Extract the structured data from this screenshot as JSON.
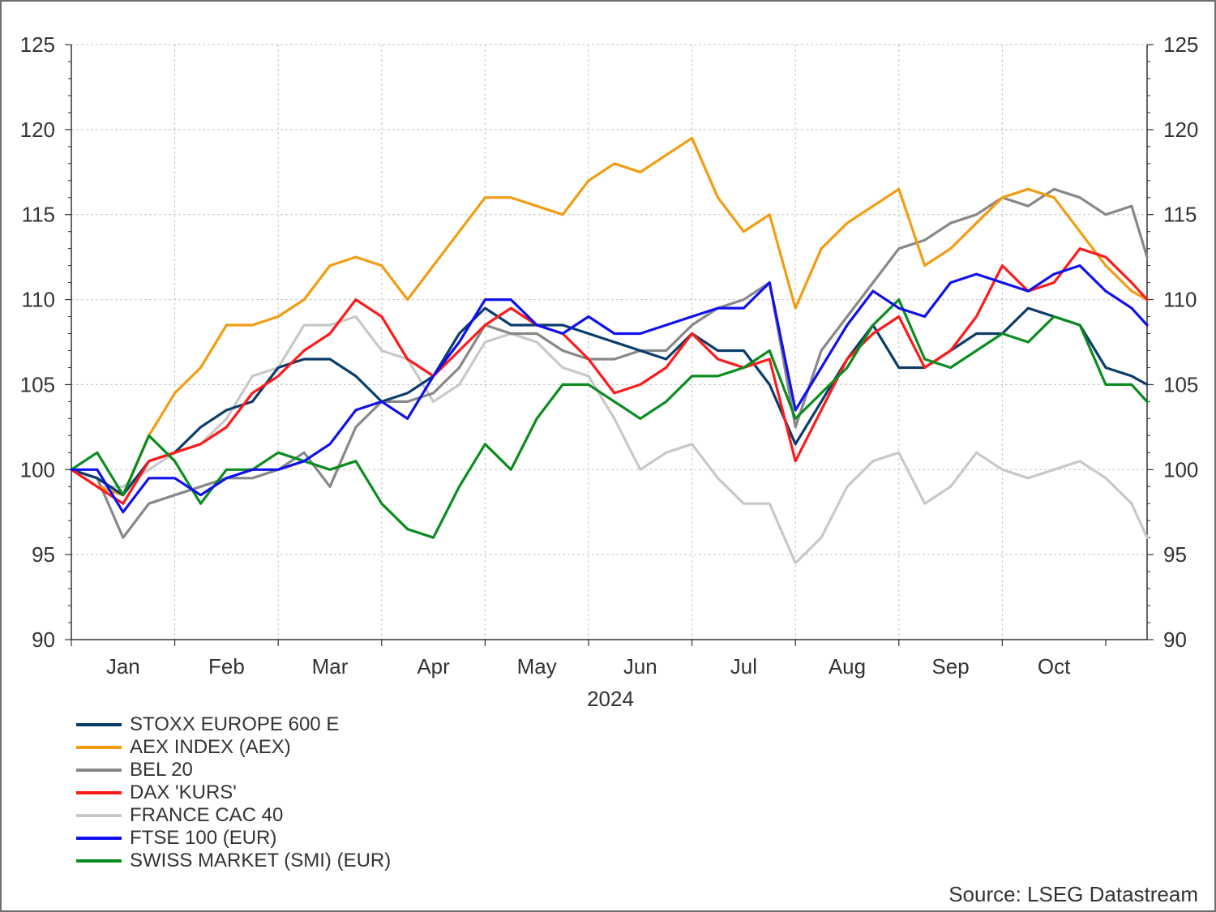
{
  "chart_data": {
    "type": "line",
    "xlabel": "2024",
    "ylabel": "",
    "ylim": [
      90,
      125
    ],
    "yticks": [
      90,
      95,
      100,
      105,
      110,
      115,
      120,
      125
    ],
    "y_axis_sides": "left and right",
    "grid": true,
    "legend_position": "bottom-left",
    "x_range_months": [
      0,
      10.4
    ],
    "x_unit": "months from 1 Jan 2024",
    "month_labels": [
      "Jan",
      "Feb",
      "Mar",
      "Apr",
      "May",
      "Jun",
      "Jul",
      "Aug",
      "Sep",
      "Oct"
    ],
    "source": "Source: LSEG Datastream",
    "series": [
      {
        "name": "STOXX EUROPE 600 E",
        "color": "#0b3d6b",
        "x": [
          0,
          0.25,
          0.5,
          0.75,
          1.0,
          1.25,
          1.5,
          1.75,
          2.0,
          2.25,
          2.5,
          2.75,
          3.0,
          3.25,
          3.5,
          3.75,
          4.0,
          4.25,
          4.5,
          4.75,
          5.0,
          5.25,
          5.5,
          5.75,
          6.0,
          6.25,
          6.5,
          6.75,
          7.0,
          7.25,
          7.5,
          7.75,
          8.0,
          8.25,
          8.5,
          8.75,
          9.0,
          9.25,
          9.5,
          9.75,
          10.0,
          10.25,
          10.4
        ],
        "y": [
          100,
          99.5,
          98.5,
          100.5,
          101,
          102.5,
          103.5,
          104,
          106,
          106.5,
          106.5,
          105.5,
          104,
          104.5,
          105.5,
          108,
          109.5,
          108.5,
          108.5,
          108.5,
          108,
          107.5,
          107,
          106.5,
          108,
          107,
          107,
          105,
          101.5,
          104,
          106.5,
          108.5,
          106,
          106,
          107,
          108,
          108,
          109.5,
          109,
          108.5,
          106,
          105.5,
          105
        ]
      },
      {
        "name": "AEX INDEX (AEX)",
        "color": "#f39c12",
        "x": [
          0,
          0.25,
          0.5,
          0.75,
          1.0,
          1.25,
          1.5,
          1.75,
          2.0,
          2.25,
          2.5,
          2.75,
          3.0,
          3.25,
          3.5,
          3.75,
          4.0,
          4.25,
          4.5,
          4.75,
          5.0,
          5.25,
          5.5,
          5.75,
          6.0,
          6.25,
          6.5,
          6.75,
          7.0,
          7.25,
          7.5,
          7.75,
          8.0,
          8.25,
          8.5,
          8.75,
          9.0,
          9.25,
          9.5,
          9.75,
          10.0,
          10.25,
          10.4
        ],
        "y": [
          100,
          99,
          98.5,
          102,
          104.5,
          106,
          108.5,
          108.5,
          109,
          110,
          112,
          112.5,
          112,
          110,
          112,
          114,
          116,
          116,
          115.5,
          115,
          117,
          118,
          117.5,
          118.5,
          119.5,
          116,
          114,
          115,
          109.5,
          113,
          114.5,
          115.5,
          116.5,
          112,
          113,
          114.5,
          116,
          116.5,
          116,
          114,
          112,
          110.5,
          110
        ]
      },
      {
        "name": "BEL 20",
        "color": "#888888",
        "x": [
          0,
          0.25,
          0.5,
          0.75,
          1.0,
          1.25,
          1.5,
          1.75,
          2.0,
          2.25,
          2.5,
          2.75,
          3.0,
          3.25,
          3.5,
          3.75,
          4.0,
          4.25,
          4.5,
          4.75,
          5.0,
          5.25,
          5.5,
          5.75,
          6.0,
          6.25,
          6.5,
          6.75,
          7.0,
          7.25,
          7.5,
          7.75,
          8.0,
          8.25,
          8.5,
          8.75,
          9.0,
          9.25,
          9.5,
          9.75,
          10.0,
          10.25,
          10.4
        ],
        "y": [
          100,
          99.5,
          96,
          98,
          98.5,
          99,
          99.5,
          99.5,
          100,
          101,
          99,
          102.5,
          104,
          104,
          104.5,
          106,
          108.5,
          108,
          108,
          107,
          106.5,
          106.5,
          107,
          107,
          108.5,
          109.5,
          110,
          111,
          102.5,
          107,
          109,
          111,
          113,
          113.5,
          114.5,
          115,
          116,
          115.5,
          116.5,
          116,
          115,
          115.5,
          112.5
        ]
      },
      {
        "name": "DAX 'KURS'",
        "color": "#ff1a1a",
        "x": [
          0,
          0.25,
          0.5,
          0.75,
          1.0,
          1.25,
          1.5,
          1.75,
          2.0,
          2.25,
          2.5,
          2.75,
          3.0,
          3.25,
          3.5,
          3.75,
          4.0,
          4.25,
          4.5,
          4.75,
          5.0,
          5.25,
          5.5,
          5.75,
          6.0,
          6.25,
          6.5,
          6.75,
          7.0,
          7.25,
          7.5,
          7.75,
          8.0,
          8.25,
          8.5,
          8.75,
          9.0,
          9.25,
          9.5,
          9.75,
          10.0,
          10.25,
          10.4
        ],
        "y": [
          100,
          99,
          98,
          100.5,
          101,
          101.5,
          102.5,
          104.5,
          105.5,
          107,
          108,
          110,
          109,
          106.5,
          105.5,
          107,
          108.5,
          109.5,
          108.5,
          108,
          106.5,
          104.5,
          105,
          106,
          108,
          106.5,
          106,
          106.5,
          100.5,
          103.5,
          106.5,
          108,
          109,
          106,
          107,
          109,
          112,
          110.5,
          111,
          113,
          112.5,
          111,
          110
        ]
      },
      {
        "name": "FRANCE CAC 40",
        "color": "#c8c8c8",
        "x": [
          0,
          0.25,
          0.5,
          0.75,
          1.0,
          1.25,
          1.5,
          1.75,
          2.0,
          2.25,
          2.5,
          2.75,
          3.0,
          3.25,
          3.5,
          3.75,
          4.0,
          4.25,
          4.5,
          4.75,
          5.0,
          5.25,
          5.5,
          5.75,
          6.0,
          6.25,
          6.5,
          6.75,
          7.0,
          7.25,
          7.5,
          7.75,
          8.0,
          8.25,
          8.5,
          8.75,
          9.0,
          9.25,
          9.5,
          9.75,
          10.0,
          10.25,
          10.4
        ],
        "y": [
          100,
          99,
          99,
          100,
          101,
          101.5,
          103,
          105.5,
          106,
          108.5,
          108.5,
          109,
          107,
          106.5,
          104,
          105,
          107.5,
          108,
          107.5,
          106,
          105.5,
          103,
          100,
          101,
          101.5,
          99.5,
          98,
          98,
          94.5,
          96,
          99,
          100.5,
          101,
          98,
          99,
          101,
          100,
          99.5,
          100,
          100.5,
          99.5,
          98,
          96
        ]
      },
      {
        "name": "FTSE 100 (EUR)",
        "color": "#1010ee",
        "x": [
          0,
          0.25,
          0.5,
          0.75,
          1.0,
          1.25,
          1.5,
          1.75,
          2.0,
          2.25,
          2.5,
          2.75,
          3.0,
          3.25,
          3.5,
          3.75,
          4.0,
          4.25,
          4.5,
          4.75,
          5.0,
          5.25,
          5.5,
          5.75,
          6.0,
          6.25,
          6.5,
          6.75,
          7.0,
          7.25,
          7.5,
          7.75,
          8.0,
          8.25,
          8.5,
          8.75,
          9.0,
          9.25,
          9.5,
          9.75,
          10.0,
          10.25,
          10.4
        ],
        "y": [
          100,
          100,
          97.5,
          99.5,
          99.5,
          98.5,
          99.5,
          100,
          100,
          100.5,
          101.5,
          103.5,
          104,
          103,
          105.5,
          107.5,
          110,
          110,
          108.5,
          108,
          109,
          108,
          108,
          108.5,
          109,
          109.5,
          109.5,
          111,
          103.5,
          106,
          108.5,
          110.5,
          109.5,
          109,
          111,
          111.5,
          111,
          110.5,
          111.5,
          112,
          110.5,
          109.5,
          108.5
        ]
      },
      {
        "name": "SWISS MARKET (SMI) (EUR)",
        "color": "#0b8c1e",
        "x": [
          0,
          0.25,
          0.5,
          0.75,
          1.0,
          1.25,
          1.5,
          1.75,
          2.0,
          2.25,
          2.5,
          2.75,
          3.0,
          3.25,
          3.5,
          3.75,
          4.0,
          4.25,
          4.5,
          4.75,
          5.0,
          5.25,
          5.5,
          5.75,
          6.0,
          6.25,
          6.5,
          6.75,
          7.0,
          7.25,
          7.5,
          7.75,
          8.0,
          8.25,
          8.5,
          8.75,
          9.0,
          9.25,
          9.5,
          9.75,
          10.0,
          10.25,
          10.4
        ],
        "y": [
          100,
          101,
          98.5,
          102,
          100.5,
          98,
          100,
          100,
          101,
          100.5,
          100,
          100.5,
          98,
          96.5,
          96,
          99,
          101.5,
          100,
          103,
          105,
          105,
          104,
          103,
          104,
          105.5,
          105.5,
          106,
          107,
          103,
          104.5,
          106,
          108.5,
          110,
          106.5,
          106,
          107,
          108,
          107.5,
          109,
          108.5,
          105,
          105,
          104
        ]
      }
    ]
  }
}
